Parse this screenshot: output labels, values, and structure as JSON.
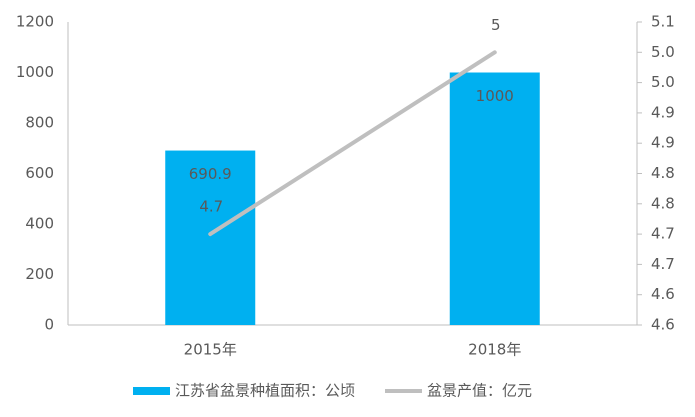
{
  "chart_data": {
    "type": "bar-line",
    "categories": [
      "2015年",
      "2018年"
    ],
    "series": [
      {
        "name": "江苏省盆景种植面积：公顷",
        "type": "bar",
        "color": "#00b0f0",
        "values": [
          690.9,
          1000
        ]
      },
      {
        "name": "盆景产值：亿元",
        "type": "line",
        "axis": "y2",
        "color": "#bfbfbf",
        "values": [
          4.7,
          5
        ]
      }
    ],
    "ylim": [
      0,
      1200
    ],
    "yticks": [
      0,
      200,
      400,
      600,
      800,
      1000,
      1200
    ],
    "y2lim": [
      4.55,
      5.05
    ],
    "y2ticks": [
      {
        "value": 4.55,
        "label": "4.6"
      },
      4.6,
      {
        "value": 4.65,
        "label": "4.7"
      },
      4.7,
      {
        "value": 4.75,
        "label": "4.8"
      },
      4.8,
      {
        "value": 4.85,
        "label": "4.9"
      },
      4.9,
      {
        "value": 4.95,
        "label": "5.0"
      },
      {
        "value": 5.0,
        "label": "5.0"
      },
      {
        "value": 5.05,
        "label": "5.1"
      }
    ],
    "legend": "bottom"
  }
}
